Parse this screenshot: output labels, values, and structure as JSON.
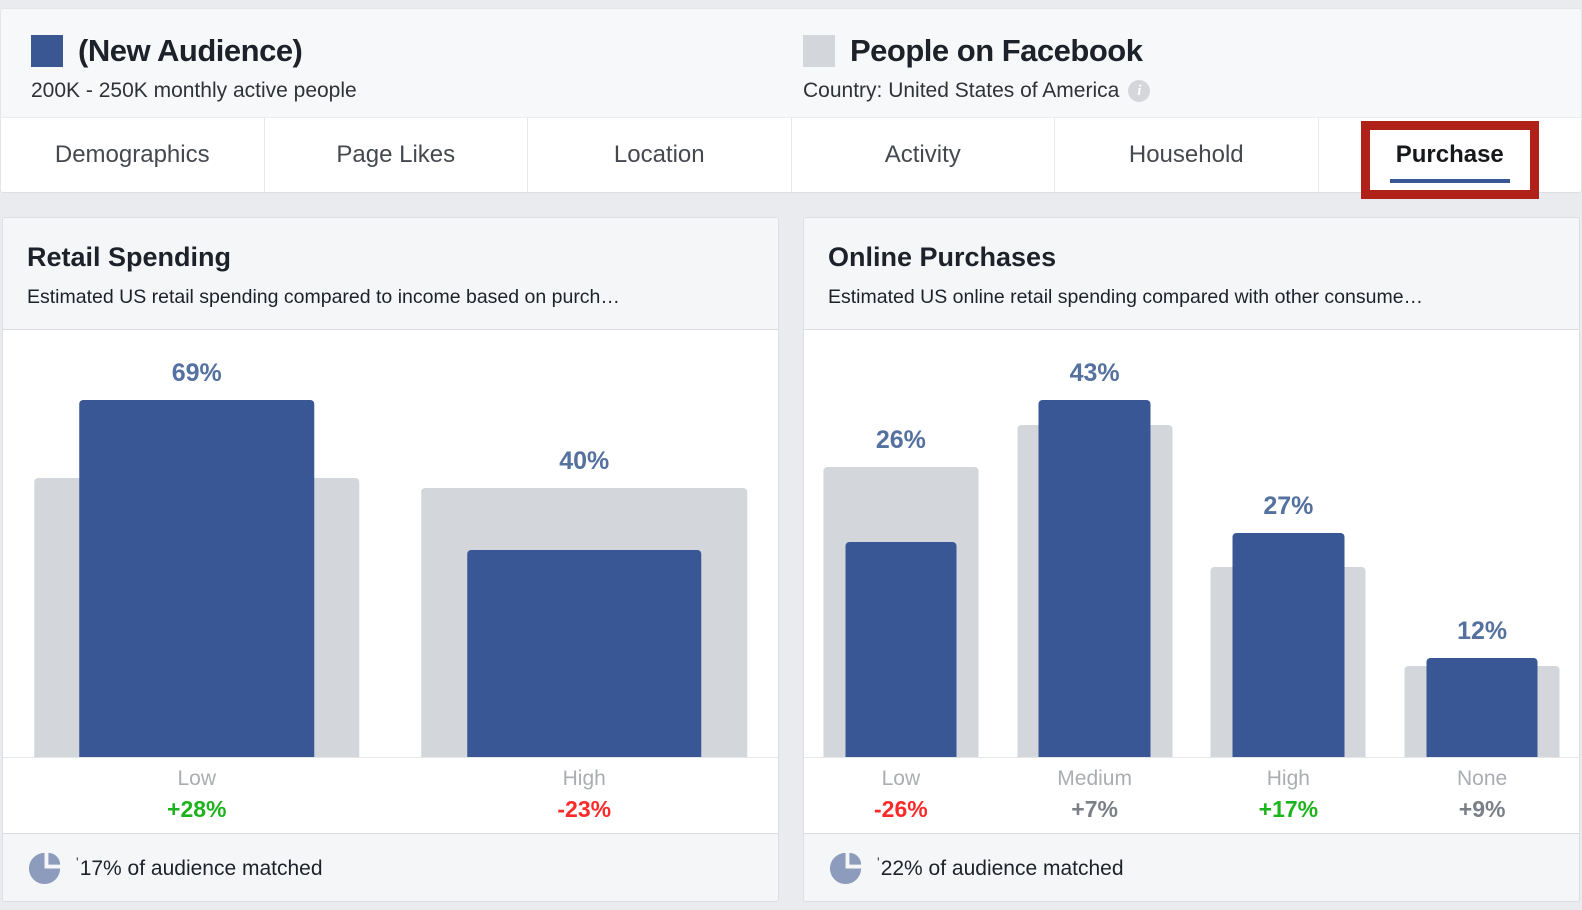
{
  "page": {
    "legend": {
      "audience": {
        "swatch_color": "#3b5793",
        "title": "(New Audience)",
        "subtitle": "200K - 250K monthly active people"
      },
      "facebook": {
        "swatch_color": "#d3d6da",
        "title": "People on Facebook",
        "subtitle": "Country: United States of America",
        "info_icon": "i"
      }
    },
    "tabs": {
      "items": [
        {
          "label": "Demographics",
          "active": false,
          "annotated": false
        },
        {
          "label": "Page Likes",
          "active": false,
          "annotated": false
        },
        {
          "label": "Location",
          "active": false,
          "annotated": false
        },
        {
          "label": "Activity",
          "active": false,
          "annotated": false
        },
        {
          "label": "Household",
          "active": false,
          "annotated": false
        },
        {
          "label": "Purchase",
          "active": true,
          "annotated": true
        }
      ],
      "active_underline_color": "#3a5795",
      "annotation_color": "#b0211a"
    }
  },
  "chart_data": [
    {
      "type": "bar",
      "title": "Retail Spending",
      "subtitle": "Estimated US retail spending compared to income based on purch…",
      "categories": [
        "Low",
        "High"
      ],
      "series": [
        {
          "name": "(New Audience)",
          "color": "#3a5795",
          "values": [
            69,
            40
          ]
        },
        {
          "name": "People on Facebook",
          "color": "#d3d6da",
          "values": [
            54,
            52
          ],
          "estimated_from_pixels": true
        }
      ],
      "value_labels": [
        "69%",
        "40%"
      ],
      "deltas": [
        {
          "label": "+28%",
          "color": "#1db31d"
        },
        {
          "label": "-23%",
          "color": "#fb2a2a"
        }
      ],
      "footer_note": "'",
      "footer_text": "17% of audience matched",
      "xlabel": "",
      "ylabel": "",
      "ylim": [
        0,
        75
      ],
      "grid": false,
      "legend_position": "page-header"
    },
    {
      "type": "bar",
      "title": "Online Purchases",
      "subtitle": "Estimated US online retail spending compared with other consume…",
      "categories": [
        "Low",
        "Medium",
        "High",
        "None"
      ],
      "series": [
        {
          "name": "(New Audience)",
          "color": "#3a5795",
          "values": [
            26,
            43,
            27,
            12
          ]
        },
        {
          "name": "People on Facebook",
          "color": "#d3d6da",
          "values": [
            35,
            40,
            23,
            11
          ],
          "estimated_from_pixels": true
        }
      ],
      "value_labels": [
        "26%",
        "43%",
        "27%",
        "12%"
      ],
      "deltas": [
        {
          "label": "-26%",
          "color": "#fb2a2a"
        },
        {
          "label": "+7%",
          "color": "#7b7f87"
        },
        {
          "label": "+17%",
          "color": "#1db31d"
        },
        {
          "label": "+9%",
          "color": "#7b7f87"
        }
      ],
      "footer_note": "'",
      "footer_text": "22% of audience matched",
      "xlabel": "",
      "ylabel": "",
      "ylim": [
        0,
        47
      ],
      "grid": false,
      "legend_position": "page-header"
    }
  ]
}
